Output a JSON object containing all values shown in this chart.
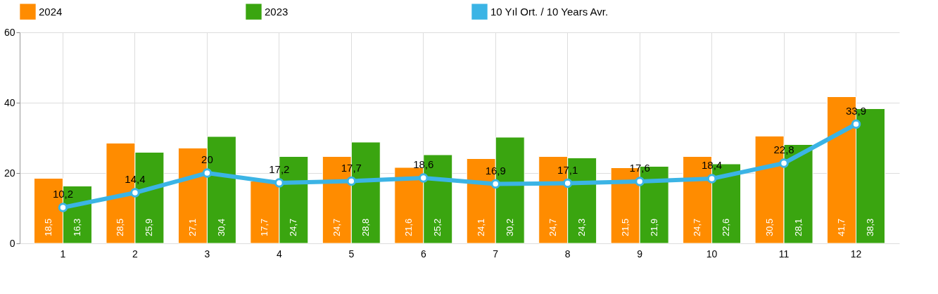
{
  "chart_data": {
    "type": "bar",
    "categories": [
      "1",
      "2",
      "3",
      "4",
      "5",
      "6",
      "7",
      "8",
      "9",
      "10",
      "11",
      "12"
    ],
    "series": [
      {
        "name": "2024",
        "color": "#ff8c00",
        "values": [
          18.5,
          28.5,
          27.1,
          17.7,
          24.7,
          21.6,
          24.1,
          24.7,
          21.5,
          24.7,
          30.5,
          41.7
        ],
        "value_labels": [
          "18,5",
          "28,5",
          "27,1",
          "17,7",
          "24,7",
          "21,6",
          "24,1",
          "24,7",
          "21,5",
          "24,7",
          "30,5",
          "41,7"
        ]
      },
      {
        "name": "2023",
        "color": "#3aa510",
        "values": [
          16.3,
          25.9,
          30.4,
          24.7,
          28.8,
          25.2,
          30.2,
          24.3,
          21.9,
          22.6,
          28.1,
          38.3
        ],
        "value_labels": [
          "16,3",
          "25,9",
          "30,4",
          "24,7",
          "28,8",
          "25,2",
          "30,2",
          "24,3",
          "21,9",
          "22,6",
          "28,1",
          "38,3"
        ]
      },
      {
        "name": "10 Yıl Ort. / 10 Years Avr.",
        "type": "line",
        "color": "#3bb4e5",
        "marker": "circle",
        "values": [
          10.2,
          14.4,
          20,
          17.2,
          17.7,
          18.6,
          16.9,
          17.1,
          17.6,
          18.4,
          22.8,
          33.9
        ],
        "value_labels": [
          "10,2",
          "14,4",
          "20",
          "17,2",
          "17,7",
          "18,6",
          "16,9",
          "17,1",
          "17,6",
          "18,4",
          "22,8",
          "33,9"
        ]
      }
    ],
    "ylim": [
      0,
      60
    ],
    "yticks": [
      0,
      20,
      40,
      60
    ],
    "grid": true,
    "legend": "top"
  }
}
